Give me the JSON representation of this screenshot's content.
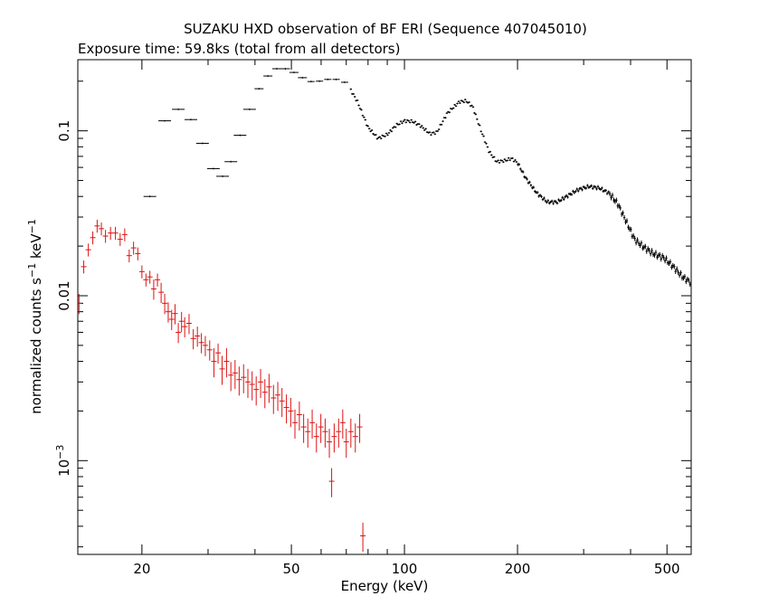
{
  "chart_data": {
    "type": "scatter",
    "title": "SUZAKU HXD observation of BF ERI (Sequence 407045010)",
    "subtitle": "Exposure time: 59.8ks (total from all detectors)",
    "xlabel": "Energy (keV)",
    "ylabel": "normalized counts s^-1 keV^-1",
    "ylabel_parts": {
      "base": "normalized counts s",
      "sup1": "−1",
      "mid": " keV",
      "sup2": "−1"
    },
    "xscale": "log",
    "yscale": "log",
    "xlim": [
      13.5,
      580
    ],
    "ylim": [
      0.00027,
      0.27
    ],
    "grid": false,
    "x_ticks": [
      {
        "value": 20,
        "label": "20"
      },
      {
        "value": 50,
        "label": "50"
      },
      {
        "value": 100,
        "label": "100"
      },
      {
        "value": 200,
        "label": "200"
      },
      {
        "value": 500,
        "label": "500"
      }
    ],
    "y_ticks": [
      {
        "value": 0.001,
        "label": "10",
        "sup": "−3"
      },
      {
        "value": 0.01,
        "label": "0.01",
        "sup": ""
      },
      {
        "value": 0.1,
        "label": "0.1",
        "sup": ""
      }
    ],
    "series": [
      {
        "color": "#000000",
        "points": [
          {
            "x": 21.0,
            "y": 0.04
          },
          {
            "x": 23.0,
            "y": 0.115
          },
          {
            "x": 25.0,
            "y": 0.135
          },
          {
            "x": 27.0,
            "y": 0.117
          },
          {
            "x": 29.0,
            "y": 0.084
          },
          {
            "x": 31.0,
            "y": 0.059
          },
          {
            "x": 32.8,
            "y": 0.053
          },
          {
            "x": 34.5,
            "y": 0.065
          },
          {
            "x": 36.5,
            "y": 0.094
          },
          {
            "x": 38.7,
            "y": 0.135
          },
          {
            "x": 41.0,
            "y": 0.18
          },
          {
            "x": 43.3,
            "y": 0.215
          },
          {
            "x": 45.7,
            "y": 0.238
          },
          {
            "x": 48.2,
            "y": 0.238
          },
          {
            "x": 50.8,
            "y": 0.226
          },
          {
            "x": 53.5,
            "y": 0.21
          },
          {
            "x": 56.4,
            "y": 0.199
          },
          {
            "x": 59.4,
            "y": 0.2
          },
          {
            "x": 62.5,
            "y": 0.205
          },
          {
            "x": 65.8,
            "y": 0.205
          },
          {
            "x": 69.3,
            "y": 0.197
          }
        ]
      },
      {
        "color": "#dd1111",
        "points": [
          {
            "x": 13.6,
            "y": 0.009
          },
          {
            "x": 14.0,
            "y": 0.015
          },
          {
            "x": 14.4,
            "y": 0.019
          },
          {
            "x": 14.8,
            "y": 0.0225
          },
          {
            "x": 15.2,
            "y": 0.0265
          },
          {
            "x": 15.6,
            "y": 0.0255
          },
          {
            "x": 16.0,
            "y": 0.023
          },
          {
            "x": 16.5,
            "y": 0.024
          },
          {
            "x": 17.0,
            "y": 0.024
          },
          {
            "x": 17.5,
            "y": 0.022
          },
          {
            "x": 18.0,
            "y": 0.0235
          },
          {
            "x": 18.5,
            "y": 0.0175
          },
          {
            "x": 19.0,
            "y": 0.0195
          },
          {
            "x": 19.5,
            "y": 0.018
          },
          {
            "x": 20.0,
            "y": 0.014
          },
          {
            "x": 20.5,
            "y": 0.0125
          },
          {
            "x": 21.0,
            "y": 0.013
          },
          {
            "x": 21.5,
            "y": 0.011
          },
          {
            "x": 22.0,
            "y": 0.0125
          },
          {
            "x": 22.5,
            "y": 0.0105
          },
          {
            "x": 23.0,
            "y": 0.009
          },
          {
            "x": 23.5,
            "y": 0.008
          },
          {
            "x": 24.0,
            "y": 0.0072
          },
          {
            "x": 24.5,
            "y": 0.0078
          },
          {
            "x": 25.0,
            "y": 0.006
          },
          {
            "x": 25.5,
            "y": 0.007
          },
          {
            "x": 26.0,
            "y": 0.0065
          },
          {
            "x": 26.7,
            "y": 0.0068
          },
          {
            "x": 27.4,
            "y": 0.0055
          },
          {
            "x": 28.1,
            "y": 0.0057
          },
          {
            "x": 28.8,
            "y": 0.0052
          },
          {
            "x": 29.5,
            "y": 0.005
          },
          {
            "x": 30.3,
            "y": 0.0047
          },
          {
            "x": 31.1,
            "y": 0.004
          },
          {
            "x": 31.9,
            "y": 0.0045
          },
          {
            "x": 32.7,
            "y": 0.0036
          },
          {
            "x": 33.6,
            "y": 0.004
          },
          {
            "x": 34.5,
            "y": 0.0033
          },
          {
            "x": 35.4,
            "y": 0.0034
          },
          {
            "x": 36.3,
            "y": 0.0031
          },
          {
            "x": 37.3,
            "y": 0.0032
          },
          {
            "x": 38.3,
            "y": 0.003
          },
          {
            "x": 39.3,
            "y": 0.0029
          },
          {
            "x": 40.3,
            "y": 0.0027
          },
          {
            "x": 41.4,
            "y": 0.003
          },
          {
            "x": 42.5,
            "y": 0.0026
          },
          {
            "x": 43.6,
            "y": 0.0028
          },
          {
            "x": 44.8,
            "y": 0.0024
          },
          {
            "x": 46.0,
            "y": 0.0025
          },
          {
            "x": 47.2,
            "y": 0.0023
          },
          {
            "x": 48.5,
            "y": 0.0021
          },
          {
            "x": 49.8,
            "y": 0.002
          },
          {
            "x": 51.1,
            "y": 0.0017
          },
          {
            "x": 52.5,
            "y": 0.0019
          },
          {
            "x": 53.9,
            "y": 0.0016
          },
          {
            "x": 55.3,
            "y": 0.0015
          },
          {
            "x": 56.8,
            "y": 0.0017
          },
          {
            "x": 58.3,
            "y": 0.0014
          },
          {
            "x": 59.9,
            "y": 0.0016
          },
          {
            "x": 61.5,
            "y": 0.0015
          },
          {
            "x": 63.1,
            "y": 0.0013
          },
          {
            "x": 64.0,
            "y": 0.00075
          },
          {
            "x": 65.0,
            "y": 0.0014
          },
          {
            "x": 66.8,
            "y": 0.0015
          },
          {
            "x": 68.5,
            "y": 0.0017
          },
          {
            "x": 70.0,
            "y": 0.0013
          },
          {
            "x": 72.0,
            "y": 0.0015
          },
          {
            "x": 74.0,
            "y": 0.0014
          },
          {
            "x": 76.0,
            "y": 0.0016
          },
          {
            "x": 77.5,
            "y": 0.00035
          }
        ]
      }
    ],
    "black_continuum_shape": [
      [
        70,
        0.197
      ],
      [
        75,
        0.15
      ],
      [
        80,
        0.105
      ],
      [
        85,
        0.09
      ],
      [
        90,
        0.095
      ],
      [
        95,
        0.108
      ],
      [
        100,
        0.115
      ],
      [
        105,
        0.114
      ],
      [
        110,
        0.108
      ],
      [
        117,
        0.096
      ],
      [
        122,
        0.098
      ],
      [
        130,
        0.128
      ],
      [
        140,
        0.15
      ],
      [
        146,
        0.152
      ],
      [
        152,
        0.14
      ],
      [
        160,
        0.1
      ],
      [
        168,
        0.075
      ],
      [
        176,
        0.065
      ],
      [
        185,
        0.066
      ],
      [
        193,
        0.068
      ],
      [
        200,
        0.064
      ],
      [
        210,
        0.052
      ],
      [
        225,
        0.042
      ],
      [
        240,
        0.037
      ],
      [
        255,
        0.037
      ],
      [
        270,
        0.04
      ],
      [
        290,
        0.044
      ],
      [
        310,
        0.046
      ],
      [
        330,
        0.045
      ],
      [
        350,
        0.042
      ],
      [
        370,
        0.036
      ],
      [
        390,
        0.028
      ],
      [
        410,
        0.022
      ],
      [
        430,
        0.02
      ],
      [
        460,
        0.018
      ],
      [
        490,
        0.017
      ],
      [
        520,
        0.015
      ],
      [
        550,
        0.013
      ],
      [
        580,
        0.012
      ]
    ]
  }
}
